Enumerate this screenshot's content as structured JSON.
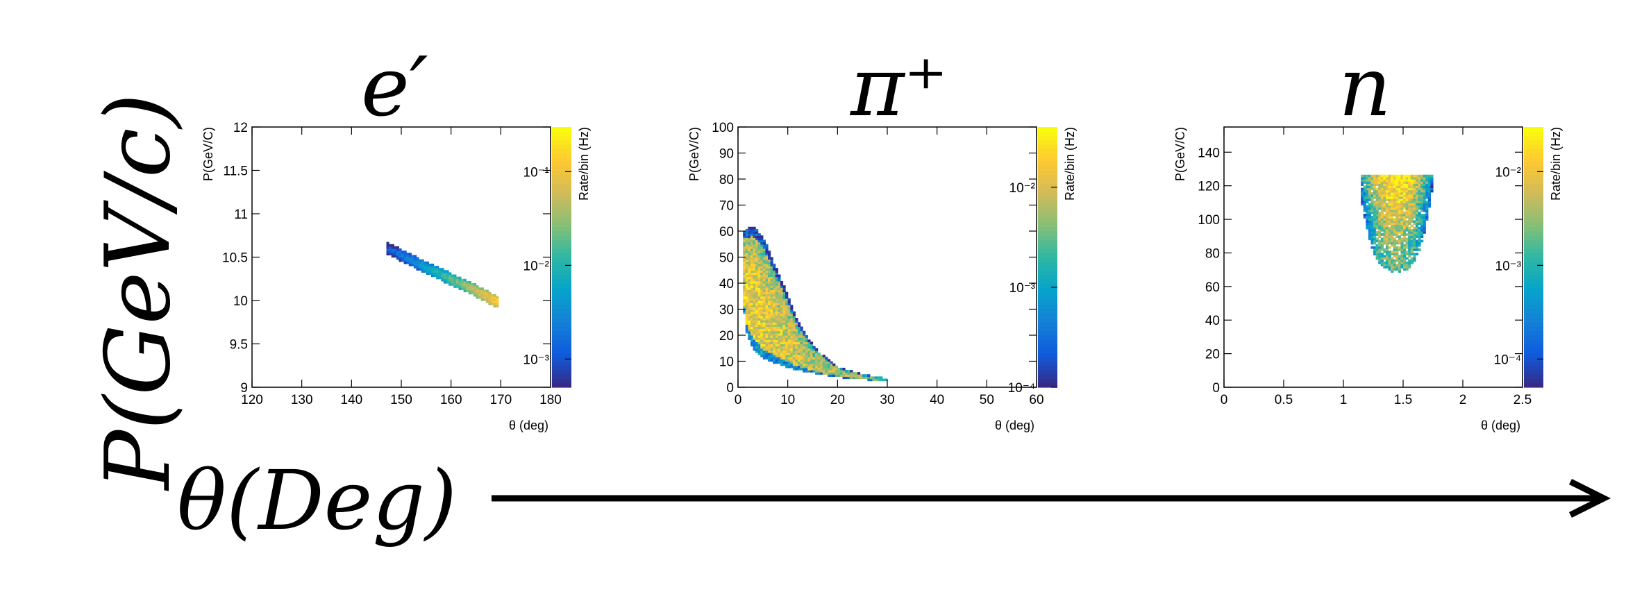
{
  "figure": {
    "y_axis_big_label": "P(GeV/c)",
    "x_axis_big_label": "θ(Deg)"
  },
  "colorscale": [
    "#352a87",
    "#0f5cdd",
    "#1481d6",
    "#06a4ca",
    "#2eb7a4",
    "#87bf77",
    "#d1bb59",
    "#fec832",
    "#f9fb0e"
  ],
  "chart_data": [
    {
      "type": "heatmap",
      "particle_label": "e′",
      "xlabel": "θ (deg)",
      "ylabel": "P(GeV/C)",
      "zlabel": "Rate/bin (Hz)",
      "xlim": [
        120,
        180
      ],
      "ylim": [
        9,
        12
      ],
      "xticks": [
        120,
        130,
        140,
        150,
        160,
        170,
        180
      ],
      "xtick_labels": [
        "120",
        "130",
        "140",
        "150",
        "160",
        "170",
        "180"
      ],
      "yticks": [
        9,
        9.5,
        10,
        10.5,
        11,
        11.5,
        12
      ],
      "ytick_labels": [
        "9",
        "9.5",
        "10",
        "10.5",
        "11",
        "11.5",
        "12"
      ],
      "zlim": [
        0.0005,
        0.3
      ],
      "zlog": true,
      "zticks": [
        0.001,
        0.01,
        0.1
      ],
      "ztick_labels": [
        "10⁻³",
        "10⁻²",
        "10⁻¹"
      ],
      "region": {
        "shape": "band",
        "ridge": [
          [
            147,
            10.61
          ],
          [
            155,
            10.38
          ],
          [
            163,
            10.17
          ],
          [
            169.5,
            9.98
          ]
        ],
        "half_height": 0.07,
        "z_trend": "increasing with θ"
      }
    },
    {
      "type": "heatmap",
      "particle_label": "π⁺",
      "xlabel": "θ (deg)",
      "ylabel": "P(GeV/C)",
      "zlabel": "Rate/bin (Hz)",
      "xlim": [
        0,
        60
      ],
      "ylim": [
        0,
        100
      ],
      "xticks": [
        0,
        10,
        20,
        30,
        40,
        50,
        60
      ],
      "xtick_labels": [
        "0",
        "10",
        "20",
        "30",
        "40",
        "50",
        "60"
      ],
      "yticks": [
        0,
        10,
        20,
        30,
        40,
        50,
        60,
        70,
        80,
        90,
        100
      ],
      "ytick_labels": [
        "0",
        "10",
        "20",
        "30",
        "40",
        "50",
        "60",
        "70",
        "80",
        "90",
        "100"
      ],
      "zlim": [
        0.0001,
        0.04
      ],
      "zlog": true,
      "zticks": [
        0.0001,
        0.001,
        0.01
      ],
      "ztick_labels": [
        "10⁻⁴",
        "10⁻³",
        "10⁻²"
      ],
      "region": {
        "shape": "falling",
        "upper_edge": [
          [
            1,
            60
          ],
          [
            3,
            62
          ],
          [
            5,
            58
          ],
          [
            7,
            49
          ],
          [
            9,
            40
          ],
          [
            11,
            30
          ],
          [
            13,
            22
          ],
          [
            16,
            14
          ],
          [
            20,
            8
          ],
          [
            25,
            5
          ],
          [
            30,
            3.5
          ]
        ],
        "lower_edge": [
          [
            30,
            2.5
          ],
          [
            25,
            3
          ],
          [
            20,
            4
          ],
          [
            15,
            5.5
          ],
          [
            11,
            7
          ],
          [
            8,
            9
          ],
          [
            5,
            11
          ],
          [
            3,
            15
          ],
          [
            1.5,
            22
          ],
          [
            1,
            35
          ]
        ],
        "z_trend": "highest at small θ and low P"
      }
    },
    {
      "type": "heatmap",
      "particle_label": "n",
      "xlabel": "θ (deg)",
      "ylabel": "P(GeV/C)",
      "zlabel": "Rate/bin (Hz)",
      "xlim": [
        0,
        2.5
      ],
      "ylim": [
        0,
        155
      ],
      "xticks": [
        0,
        0.5,
        1,
        1.5,
        2,
        2.5
      ],
      "xtick_labels": [
        "0",
        "0.5",
        "1",
        "1.5",
        "2",
        "2.5"
      ],
      "yticks": [
        0,
        20,
        40,
        60,
        80,
        100,
        120,
        140
      ],
      "ytick_labels": [
        "0",
        "20",
        "40",
        "60",
        "80",
        "100",
        "120",
        "140"
      ],
      "zlim": [
        5e-05,
        0.03
      ],
      "zlog": true,
      "zticks": [
        0.0001,
        0.001,
        0.01
      ],
      "ztick_labels": [
        "10⁻⁴",
        "10⁻³",
        "10⁻²"
      ],
      "region": {
        "shape": "cup",
        "center_theta": 1.44,
        "half_width": 0.3,
        "p_top": 126,
        "p_bottom": 69,
        "z_trend": "highest near θ=1.44 and P≈120"
      }
    }
  ]
}
